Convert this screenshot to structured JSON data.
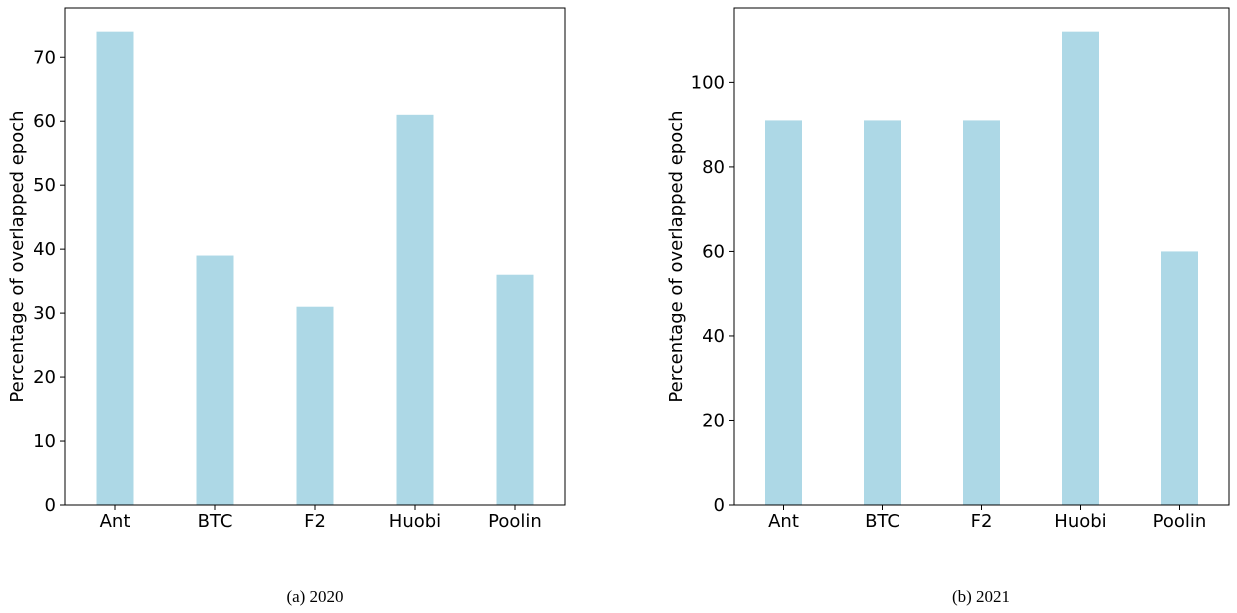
{
  "colors": {
    "bar": "#add8e6",
    "axis": "#000000",
    "background": "#ffffff"
  },
  "chart_data": [
    {
      "type": "bar",
      "caption": "(a)  2020",
      "title": "",
      "xlabel": "",
      "ylabel": "Percentage of overlapped epoch",
      "categories": [
        "Ant",
        "BTC",
        "F2",
        "Huobi",
        "Poolin"
      ],
      "values": [
        74,
        39,
        31,
        61,
        36
      ],
      "yticks": [
        0,
        10,
        20,
        30,
        40,
        50,
        60,
        70
      ],
      "ylim": [
        0,
        77.7
      ],
      "grid": false,
      "legend": "none"
    },
    {
      "type": "bar",
      "caption": "(b)  2021",
      "title": "",
      "xlabel": "",
      "ylabel": "Percentage of overlapped epoch",
      "categories": [
        "Ant",
        "BTC",
        "F2",
        "Huobi",
        "Poolin"
      ],
      "values": [
        91,
        91,
        91,
        112,
        60
      ],
      "yticks": [
        0,
        20,
        40,
        60,
        80,
        100
      ],
      "ylim": [
        0,
        117.6
      ],
      "grid": false,
      "legend": "none"
    }
  ]
}
